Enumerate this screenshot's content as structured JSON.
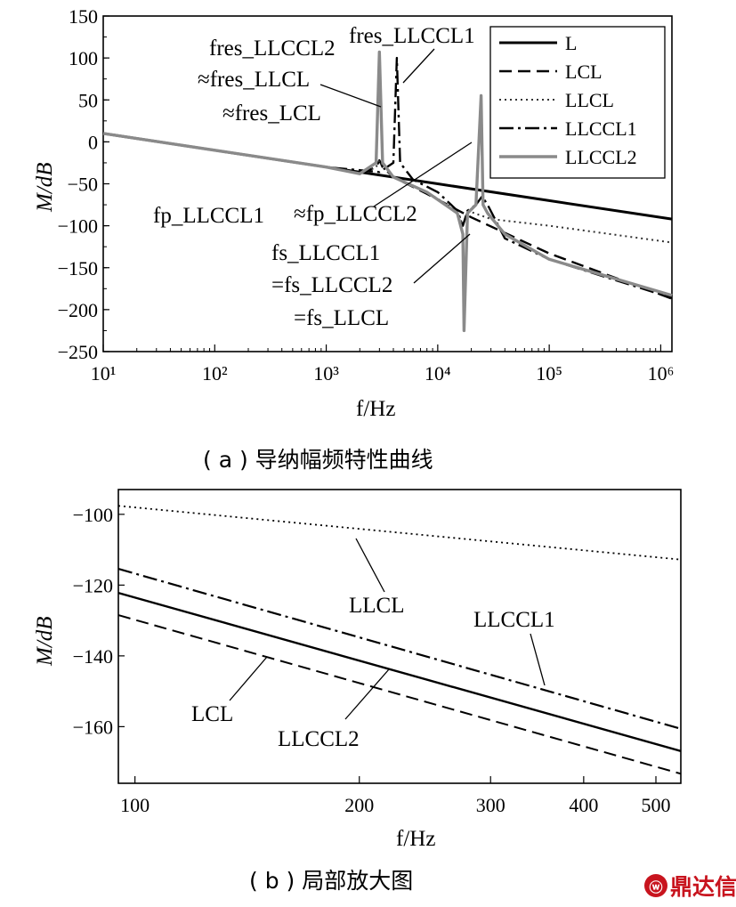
{
  "panel_a": {
    "caption": "( a ) 导纳幅频特性曲线",
    "ylabel": "M/dB",
    "xlabel": "f/Hz",
    "legend_position": "top-right",
    "annotations": {
      "res12_l1": "fres_LLCCL2",
      "res12_l2": "≈fres_LLCL",
      "res12_l3": "≈fres_LCL",
      "res1": "fres_LLCCL1",
      "p1": "fp_LLCCL1",
      "p2": "≈fp_LLCCL2",
      "s_l1": "fs_LLCCL1",
      "s_l2": "=fs_LLCCL2",
      "s_l3": "=fs_LLCL"
    }
  },
  "panel_b": {
    "caption": "( b ) 局部放大图",
    "ylabel": "M/dB",
    "xlabel": "f/Hz",
    "labels": {
      "llcl": "LLCL",
      "llccl1": "LLCCL1",
      "lcl": "LCL",
      "llccl2": "LLCCL2"
    }
  },
  "watermark": "鼎达信",
  "colors": {
    "L": "#000000",
    "LCL": "#000000",
    "LLCL": "#333333",
    "LLCCL1": "#000000",
    "LLCCL2": "#808080"
  },
  "chart_data": [
    {
      "type": "line",
      "xscale": "log",
      "xlim": [
        10,
        1260000
      ],
      "ylim": [
        -250,
        150
      ],
      "xticks": [
        10,
        100,
        1000,
        10000,
        100000,
        1000000
      ],
      "xtick_labels": [
        "10¹",
        "10²",
        "10³",
        "10⁴",
        "10⁵",
        "10⁶"
      ],
      "yticks": [
        150,
        100,
        50,
        0,
        -50,
        -100,
        -150,
        -200,
        -250
      ],
      "xlabel": "f/Hz",
      "ylabel": "M/dB",
      "grid": false,
      "series": [
        {
          "name": "L",
          "style": "solid",
          "x": [
            10,
            100,
            1000,
            10000,
            100000,
            1260000
          ],
          "y": [
            10,
            -10,
            -30,
            -50,
            -70,
            -92
          ]
        },
        {
          "name": "LCL",
          "style": "dashed",
          "x": [
            10,
            1000,
            2000,
            2800,
            3000,
            3200,
            4000,
            8000,
            20000,
            100000,
            1260000
          ],
          "y": [
            10,
            -30,
            -38,
            -30,
            -22,
            -30,
            -42,
            -62,
            -90,
            -133,
            -187
          ]
        },
        {
          "name": "LLCL",
          "style": "dotted",
          "x": [
            10,
            1000,
            2000,
            2800,
            3000,
            3200,
            4000,
            8000,
            15000,
            16800,
            18500,
            30000,
            100000,
            1260000
          ],
          "y": [
            10,
            -30,
            -38,
            -30,
            -22,
            -30,
            -42,
            -60,
            -82,
            -100,
            -82,
            -92,
            -100,
            -120
          ]
        },
        {
          "name": "LLCCL1",
          "style": "dashdot",
          "x": [
            10,
            1000,
            3000,
            4000,
            4300,
            4600,
            6000,
            10000,
            15000,
            16800,
            18500,
            22000,
            25000,
            28000,
            40000,
            100000,
            1260000
          ],
          "y": [
            10,
            -30,
            -36,
            -25,
            100,
            -25,
            -45,
            -60,
            -82,
            -100,
            -82,
            -75,
            -65,
            -75,
            -115,
            -140,
            -186
          ]
        },
        {
          "name": "LLCCL2",
          "style": "solid",
          "x": [
            10,
            1000,
            2000,
            2800,
            3000,
            3200,
            4000,
            8000,
            15000,
            16800,
            17200,
            18500,
            22000,
            24500,
            25500,
            28000,
            40000,
            100000,
            1260000
          ],
          "y": [
            10,
            -30,
            -38,
            -25,
            107,
            -25,
            -42,
            -60,
            -85,
            -110,
            -225,
            -85,
            -75,
            55,
            -75,
            -85,
            -110,
            -140,
            -183
          ]
        }
      ]
    },
    {
      "type": "line",
      "xscale": "log",
      "xlim": [
        95,
        540
      ],
      "ylim": [
        -176,
        -93
      ],
      "xticks": [
        100,
        200,
        300,
        400,
        500
      ],
      "yticks": [
        -100,
        -120,
        -140,
        -160
      ],
      "xlabel": "f/Hz",
      "ylabel": "M/dB",
      "grid": false,
      "series": [
        {
          "style": "dotted",
          "x": [
            95,
            540
          ],
          "y": [
            -97.6,
            -112.8
          ]
        },
        {
          "style": "dashdot",
          "x": [
            95,
            540
          ],
          "y": [
            -115.4,
            -160.6
          ]
        },
        {
          "style": "solid",
          "x": [
            95,
            540
          ],
          "y": [
            -122.2,
            -166.9
          ]
        },
        {
          "style": "dashed",
          "x": [
            95,
            540
          ],
          "y": [
            -128.5,
            -173.3
          ]
        }
      ]
    }
  ]
}
